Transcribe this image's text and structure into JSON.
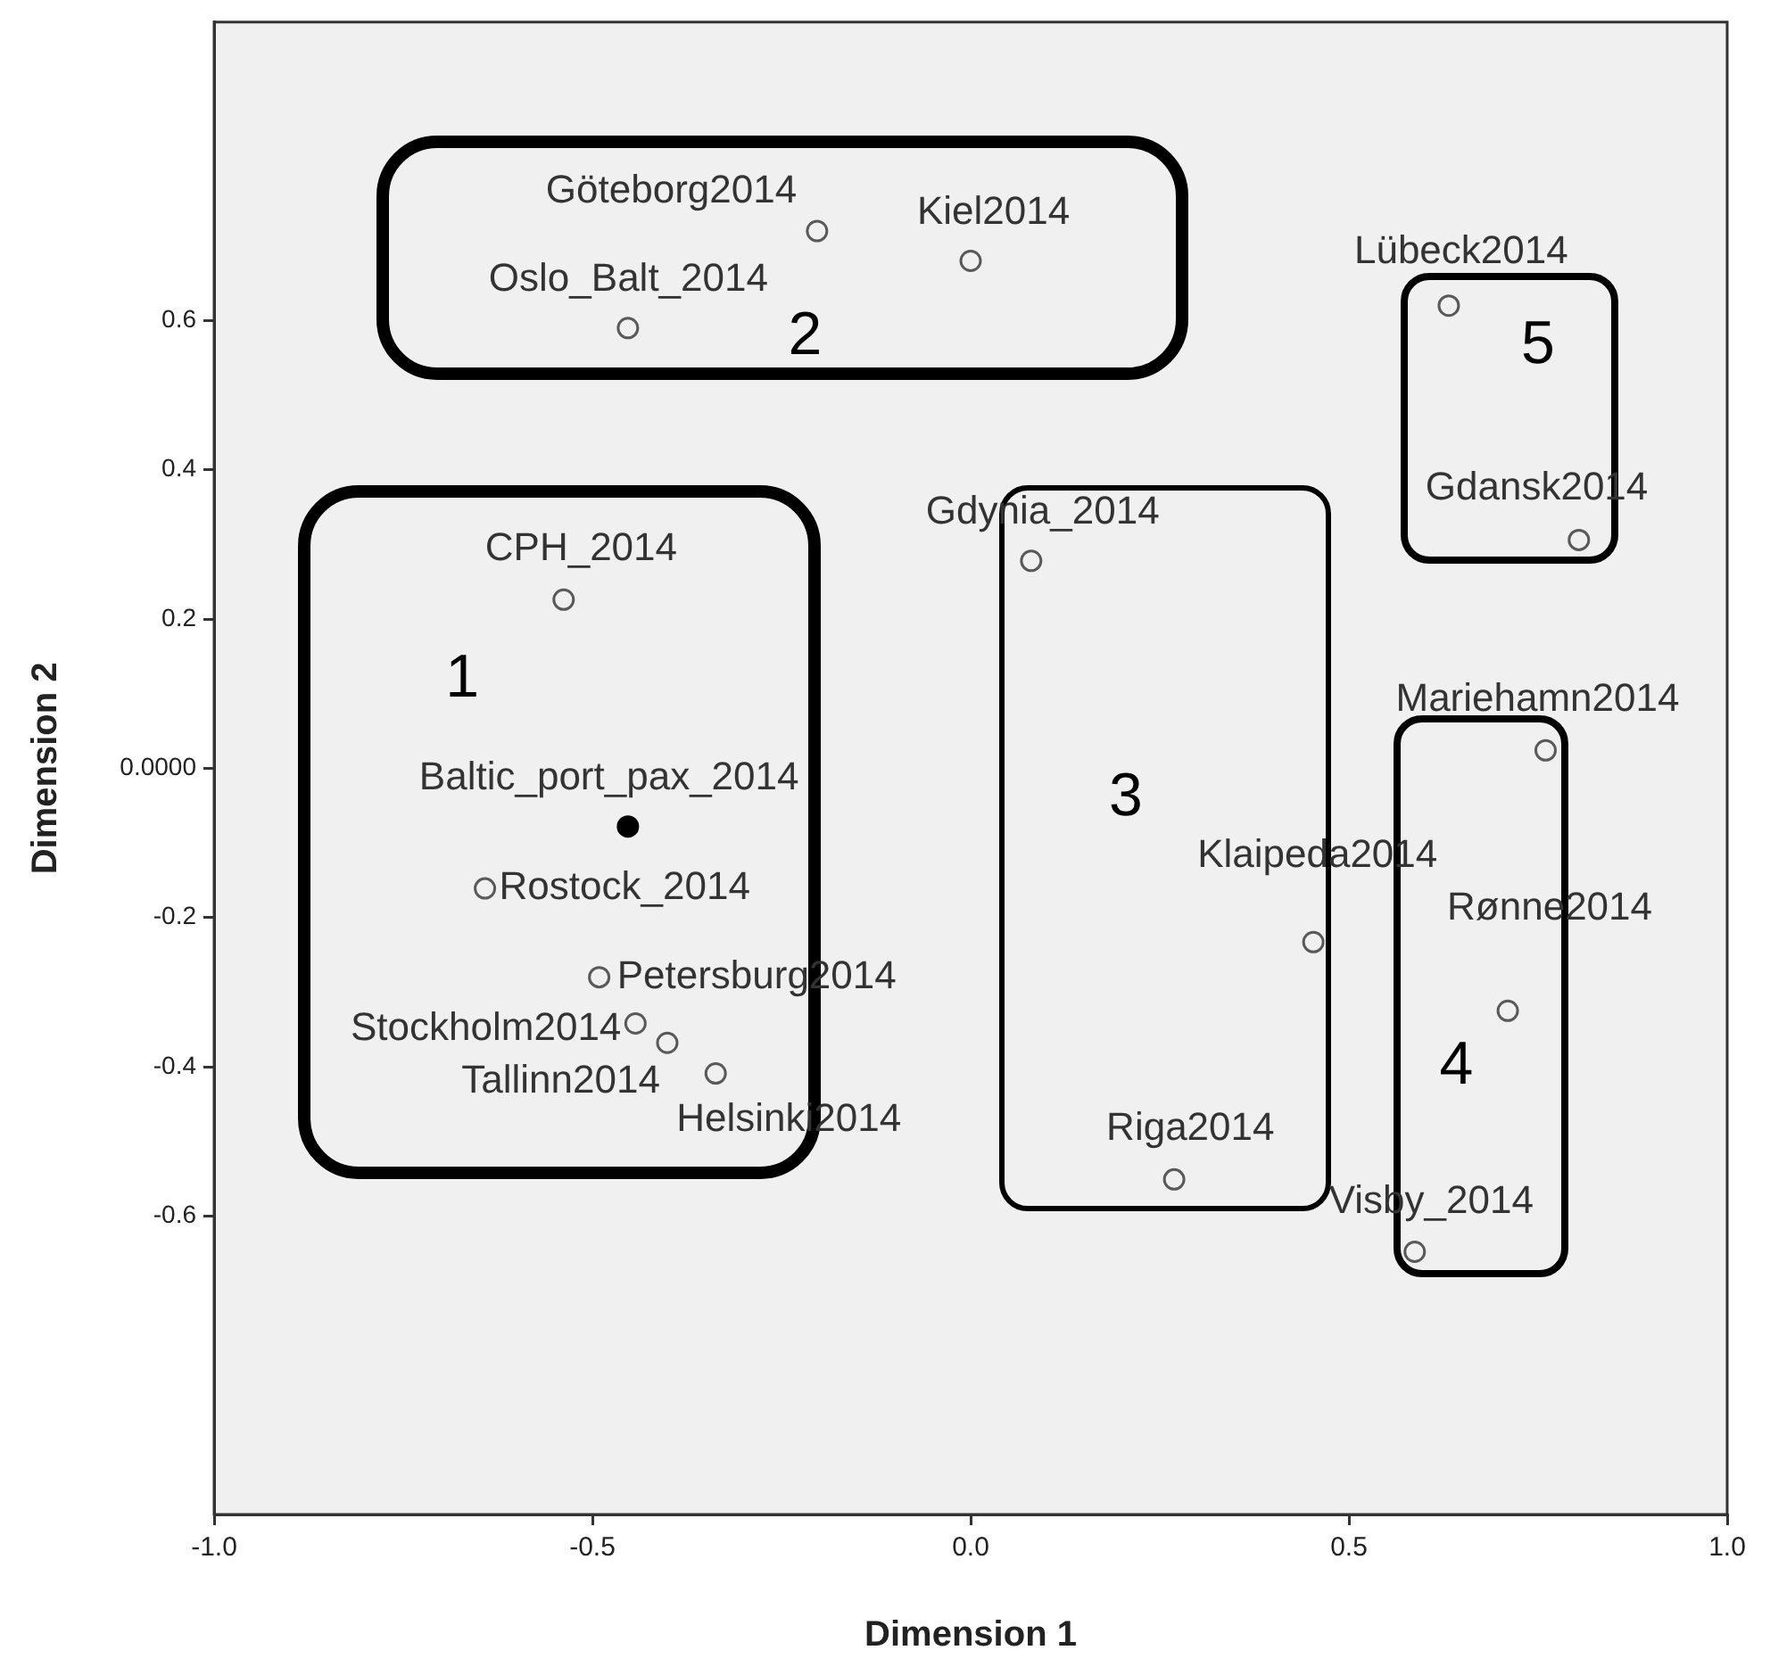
{
  "chart_data": {
    "type": "scatter",
    "xlabel": "Dimension 1",
    "ylabel": "Dimension 2",
    "xlim": [
      -1,
      1
    ],
    "ylim": [
      -1,
      1
    ],
    "xticks": [
      {
        "value": -1,
        "label": "-1.0"
      },
      -0.5,
      {
        "value": 0,
        "label": "0.0"
      },
      0.5,
      {
        "value": 1,
        "label": "1.0"
      }
    ],
    "yticks": [
      0.6,
      0.4,
      0.2,
      {
        "value": 0,
        "label": "0.0000"
      },
      -0.2,
      -0.4,
      -0.6
    ],
    "grid": false,
    "legend": false,
    "marker": "circle",
    "annotations": [
      "1",
      "2",
      "3",
      "4",
      "5"
    ],
    "series": [
      {
        "name": "Göteborg2014",
        "color": "#595959",
        "x": [
          -0.203
        ],
        "values": [
          0.72
        ]
      },
      {
        "name": "Kiel2014",
        "color": "#595959",
        "x": [
          0.0
        ],
        "values": [
          0.68
        ]
      },
      {
        "name": "Oslo_Balt_2014",
        "color": "#595959",
        "x": [
          -0.453
        ],
        "values": [
          0.59
        ]
      },
      {
        "name": "Lübeck2014",
        "color": "#595959",
        "x": [
          0.632
        ],
        "values": [
          0.62
        ]
      },
      {
        "name": "Gdansk2014",
        "color": "#595959",
        "x": [
          0.804
        ],
        "values": [
          0.306
        ]
      },
      {
        "name": "CPH_2014",
        "color": "#595959",
        "x": [
          -0.538
        ],
        "values": [
          0.226
        ]
      },
      {
        "name": "Gdynia_2014",
        "color": "#595959",
        "x": [
          0.08
        ],
        "values": [
          0.278
        ]
      },
      {
        "name": "Mariehamn2014",
        "color": "#595959",
        "x": [
          0.76
        ],
        "values": [
          0.024
        ]
      },
      {
        "name": "Baltic_port_pax_2014",
        "color": "#000000",
        "x": [
          -0.453
        ],
        "values": [
          -0.078
        ]
      },
      {
        "name": "Rostock_2014",
        "color": "#595959",
        "x": [
          -0.642
        ],
        "values": [
          -0.161
        ]
      },
      {
        "name": "Klaipeda2014",
        "color": "#595959",
        "x": [
          0.453
        ],
        "values": [
          -0.233
        ]
      },
      {
        "name": "Petersburg2014",
        "color": "#595959",
        "x": [
          -0.491
        ],
        "values": [
          -0.28
        ]
      },
      {
        "name": "Stockholm2014",
        "color": "#595959",
        "x": [
          -0.443
        ],
        "values": [
          -0.342
        ]
      },
      {
        "name": "Tallinn2014",
        "color": "#595959",
        "x": [
          -0.401
        ],
        "values": [
          -0.368
        ]
      },
      {
        "name": "Helsinki2014",
        "color": "#595959",
        "x": [
          -0.337
        ],
        "values": [
          -0.409
        ]
      },
      {
        "name": "Rønne2014",
        "color": "#595959",
        "x": [
          0.71
        ],
        "values": [
          -0.325
        ]
      },
      {
        "name": "Riga2014",
        "color": "#595959",
        "x": [
          0.269
        ],
        "values": [
          -0.551
        ]
      },
      {
        "name": "Visby_2014",
        "color": "#595959",
        "x": [
          0.587
        ],
        "values": [
          -0.648
        ]
      }
    ]
  }
}
